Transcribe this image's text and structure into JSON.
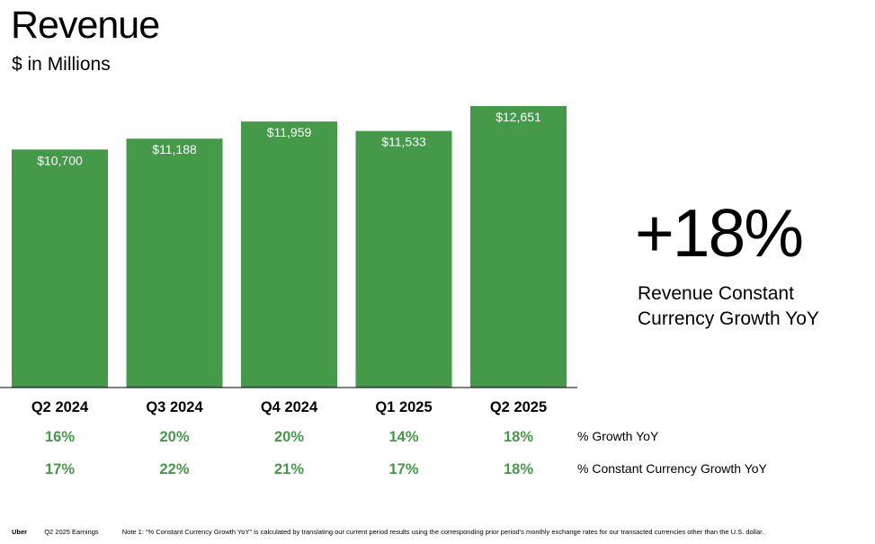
{
  "header": {
    "title": "Revenue",
    "subtitle": "$ in Millions"
  },
  "chart_data": {
    "type": "bar",
    "title": "Revenue",
    "ylabel": "$ in Millions",
    "categories": [
      "Q2 2024",
      "Q3 2024",
      "Q4 2024",
      "Q1 2025",
      "Q2 2025"
    ],
    "values": [
      10700,
      11188,
      11959,
      11533,
      12651
    ],
    "value_labels": [
      "$10,700",
      "$11,188",
      "$11,959",
      "$11,533",
      "$12,651"
    ],
    "ylim": [
      0,
      12651
    ],
    "grid": false,
    "bar_color": "#449a48",
    "metrics": [
      {
        "name": "% Growth YoY",
        "values": [
          "16%",
          "20%",
          "20%",
          "14%",
          "18%"
        ]
      },
      {
        "name": "% Constant Currency Growth YoY",
        "values": [
          "17%",
          "22%",
          "21%",
          "17%",
          "18%"
        ]
      }
    ],
    "metric_color": "#449a48"
  },
  "highlight": {
    "value": "+18%",
    "label_line1": "Revenue Constant",
    "label_line2": "Currency Growth YoY"
  },
  "footer": {
    "company": "Uber",
    "deck": "Q2 2025 Earnings",
    "note": "Note 1: “% Constant Currency Growth YoY” is calculated by translating our current period results using the corresponding prior period’s monthly exchange rates for our transacted currencies other than the U.S. dollar."
  }
}
